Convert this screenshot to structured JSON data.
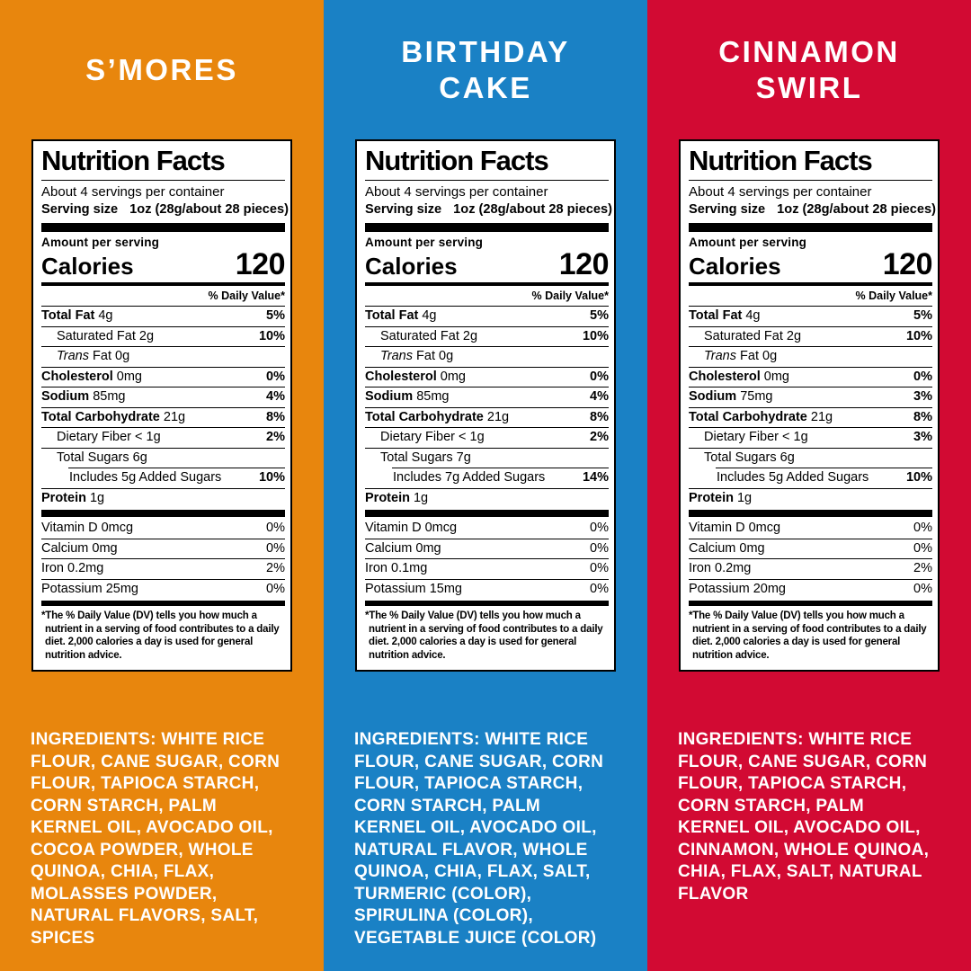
{
  "text_on_color": "#FFFFFF",
  "label_colors": {
    "background": "#FFFFFF",
    "text": "#000000"
  },
  "panels": [
    {
      "flavor_color": "#E8860D",
      "title_lines": [
        "S’MORES"
      ],
      "label": {
        "title": "Nutrition Facts",
        "servings_per_container": "About 4 servings per container",
        "serving_size_label": "Serving size",
        "serving_size_value": "1oz (28g/about 28 pieces)",
        "amount_per_serving": "Amount per serving",
        "calories_label": "Calories",
        "calories_value": "120",
        "daily_value_header": "% Daily Value*",
        "rows": [
          {
            "parts": [
              [
                "b",
                "Total Fat"
              ],
              [
                "r",
                " 4g"
              ]
            ],
            "dv": "5%",
            "indent": 0
          },
          {
            "parts": [
              [
                "r",
                "Saturated Fat 2g"
              ]
            ],
            "dv": "10%",
            "indent": 1
          },
          {
            "parts": [
              [
                "i",
                "Trans"
              ],
              [
                "r",
                " Fat 0g"
              ]
            ],
            "dv": "",
            "indent": 1
          },
          {
            "parts": [
              [
                "b",
                "Cholesterol"
              ],
              [
                "r",
                " 0mg"
              ]
            ],
            "dv": "0%",
            "indent": 0
          },
          {
            "parts": [
              [
                "b",
                "Sodium"
              ],
              [
                "r",
                " 85mg"
              ]
            ],
            "dv": "4%",
            "indent": 0
          },
          {
            "parts": [
              [
                "b",
                "Total Carbohydrate"
              ],
              [
                "r",
                " 21g"
              ]
            ],
            "dv": "8%",
            "indent": 0
          },
          {
            "parts": [
              [
                "r",
                "Dietary Fiber < 1g"
              ]
            ],
            "dv": "2%",
            "indent": 1
          },
          {
            "parts": [
              [
                "r",
                "Total Sugars 6g"
              ]
            ],
            "dv": "",
            "indent": 1
          },
          {
            "parts": [
              [
                "r",
                "Includes 5g Added Sugars"
              ]
            ],
            "dv": "10%",
            "indent": 2,
            "sep_indent": true
          },
          {
            "parts": [
              [
                "b",
                "Protein"
              ],
              [
                "r",
                " 1g"
              ]
            ],
            "dv": "",
            "indent": 0
          }
        ],
        "vitamin_rows": [
          {
            "parts": [
              [
                "r",
                "Vitamin D 0mcg"
              ]
            ],
            "dv": "0%"
          },
          {
            "parts": [
              [
                "r",
                "Calcium 0mg"
              ]
            ],
            "dv": "0%"
          },
          {
            "parts": [
              [
                "r",
                "Iron 0.2mg"
              ]
            ],
            "dv": "2%"
          },
          {
            "parts": [
              [
                "r",
                "Potassium 25mg"
              ]
            ],
            "dv": "0%"
          }
        ],
        "footnote": "*The % Daily Value (DV) tells you how much a nutrient in a serving of food contributes to a daily diet. 2,000 calories a day is used for general nutrition advice."
      },
      "ingredients_label": "INGREDIENTS:",
      "ingredients": "WHITE RICE FLOUR, CANE SUGAR, CORN FLOUR, TAPIOCA STARCH, CORN STARCH, PALM KERNEL OIL, AVOCADO OIL, COCOA POWDER, WHOLE QUINOA, CHIA, FLAX, MOLASSES POWDER, NATURAL FLAVORS, SALT, SPICES"
    },
    {
      "flavor_color": "#1A81C5",
      "title_lines": [
        "BIRTHDAY",
        "CAKE"
      ],
      "label": {
        "title": "Nutrition Facts",
        "servings_per_container": "About 4 servings per container",
        "serving_size_label": "Serving size",
        "serving_size_value": "1oz (28g/about 28 pieces)",
        "amount_per_serving": "Amount per serving",
        "calories_label": "Calories",
        "calories_value": "120",
        "daily_value_header": "% Daily Value*",
        "rows": [
          {
            "parts": [
              [
                "b",
                "Total Fat"
              ],
              [
                "r",
                " 4g"
              ]
            ],
            "dv": "5%",
            "indent": 0
          },
          {
            "parts": [
              [
                "r",
                "Saturated Fat 2g"
              ]
            ],
            "dv": "10%",
            "indent": 1
          },
          {
            "parts": [
              [
                "i",
                "Trans"
              ],
              [
                "r",
                " Fat 0g"
              ]
            ],
            "dv": "",
            "indent": 1
          },
          {
            "parts": [
              [
                "b",
                "Cholesterol"
              ],
              [
                "r",
                " 0mg"
              ]
            ],
            "dv": "0%",
            "indent": 0
          },
          {
            "parts": [
              [
                "b",
                "Sodium"
              ],
              [
                "r",
                " 85mg"
              ]
            ],
            "dv": "4%",
            "indent": 0
          },
          {
            "parts": [
              [
                "b",
                "Total Carbohydrate"
              ],
              [
                "r",
                " 21g"
              ]
            ],
            "dv": "8%",
            "indent": 0
          },
          {
            "parts": [
              [
                "r",
                "Dietary Fiber < 1g"
              ]
            ],
            "dv": "2%",
            "indent": 1
          },
          {
            "parts": [
              [
                "r",
                "Total Sugars 7g"
              ]
            ],
            "dv": "",
            "indent": 1
          },
          {
            "parts": [
              [
                "r",
                "Includes 7g Added Sugars"
              ]
            ],
            "dv": "14%",
            "indent": 2,
            "sep_indent": true
          },
          {
            "parts": [
              [
                "b",
                "Protein"
              ],
              [
                "r",
                " 1g"
              ]
            ],
            "dv": "",
            "indent": 0
          }
        ],
        "vitamin_rows": [
          {
            "parts": [
              [
                "r",
                "Vitamin D 0mcg"
              ]
            ],
            "dv": "0%"
          },
          {
            "parts": [
              [
                "r",
                "Calcium 0mg"
              ]
            ],
            "dv": "0%"
          },
          {
            "parts": [
              [
                "r",
                "Iron 0.1mg"
              ]
            ],
            "dv": "0%"
          },
          {
            "parts": [
              [
                "r",
                "Potassium 15mg"
              ]
            ],
            "dv": "0%"
          }
        ],
        "footnote": "*The % Daily Value (DV) tells you how much a nutrient in a serving of food contributes to a daily diet. 2,000 calories a day is used for general nutrition advice."
      },
      "ingredients_label": "INGREDIENTS:",
      "ingredients": "WHITE RICE FLOUR, CANE SUGAR, CORN FLOUR, TAPIOCA STARCH, CORN STARCH, PALM KERNEL OIL, AVOCADO OIL, NATURAL FLAVOR, WHOLE QUINOA, CHIA, FLAX, SALT, TURMERIC (COLOR), SPIRULINA (COLOR), VEGETABLE JUICE (COLOR)"
    },
    {
      "flavor_color": "#D20A33",
      "title_lines": [
        "CINNAMON",
        "SWIRL"
      ],
      "label": {
        "title": "Nutrition Facts",
        "servings_per_container": "About 4 servings per container",
        "serving_size_label": "Serving size",
        "serving_size_value": "1oz (28g/about 28 pieces)",
        "amount_per_serving": "Amount per serving",
        "calories_label": "Calories",
        "calories_value": "120",
        "daily_value_header": "% Daily Value*",
        "rows": [
          {
            "parts": [
              [
                "b",
                "Total Fat"
              ],
              [
                "r",
                " 4g"
              ]
            ],
            "dv": "5%",
            "indent": 0
          },
          {
            "parts": [
              [
                "r",
                "Saturated Fat 2g"
              ]
            ],
            "dv": "10%",
            "indent": 1
          },
          {
            "parts": [
              [
                "i",
                "Trans"
              ],
              [
                "r",
                " Fat 0g"
              ]
            ],
            "dv": "",
            "indent": 1
          },
          {
            "parts": [
              [
                "b",
                "Cholesterol"
              ],
              [
                "r",
                " 0mg"
              ]
            ],
            "dv": "0%",
            "indent": 0
          },
          {
            "parts": [
              [
                "b",
                "Sodium"
              ],
              [
                "r",
                " 75mg"
              ]
            ],
            "dv": "3%",
            "indent": 0
          },
          {
            "parts": [
              [
                "b",
                "Total Carbohydrate"
              ],
              [
                "r",
                " 21g"
              ]
            ],
            "dv": "8%",
            "indent": 0
          },
          {
            "parts": [
              [
                "r",
                "Dietary Fiber < 1g"
              ]
            ],
            "dv": "3%",
            "indent": 1
          },
          {
            "parts": [
              [
                "r",
                "Total Sugars 6g"
              ]
            ],
            "dv": "",
            "indent": 1
          },
          {
            "parts": [
              [
                "r",
                "Includes 5g Added Sugars"
              ]
            ],
            "dv": "10%",
            "indent": 2,
            "sep_indent": true
          },
          {
            "parts": [
              [
                "b",
                "Protein"
              ],
              [
                "r",
                " 1g"
              ]
            ],
            "dv": "",
            "indent": 0
          }
        ],
        "vitamin_rows": [
          {
            "parts": [
              [
                "r",
                "Vitamin D 0mcg"
              ]
            ],
            "dv": "0%"
          },
          {
            "parts": [
              [
                "r",
                "Calcium 0mg"
              ]
            ],
            "dv": "0%"
          },
          {
            "parts": [
              [
                "r",
                "Iron 0.2mg"
              ]
            ],
            "dv": "2%"
          },
          {
            "parts": [
              [
                "r",
                "Potassium 20mg"
              ]
            ],
            "dv": "0%"
          }
        ],
        "footnote": "*The % Daily Value (DV) tells you how much a nutrient in a serving of food contributes to a daily diet. 2,000 calories a day is used for general nutrition advice."
      },
      "ingredients_label": "INGREDIENTS:",
      "ingredients": "WHITE RICE FLOUR, CANE SUGAR, CORN FLOUR, TAPIOCA STARCH, CORN STARCH, PALM KERNEL OIL, AVOCADO OIL, CINNAMON, WHOLE QUINOA, CHIA, FLAX, SALT, NATURAL FLAVOR"
    }
  ]
}
